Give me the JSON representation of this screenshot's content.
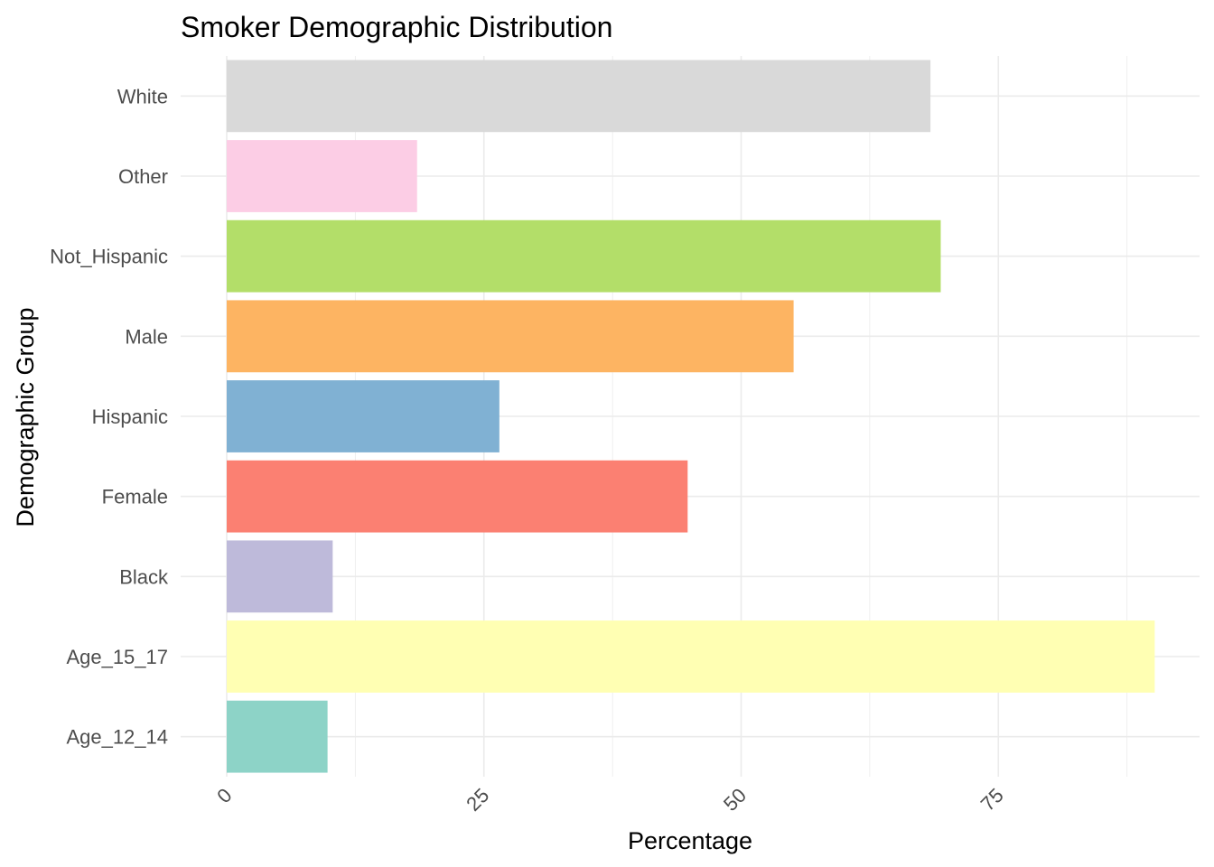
{
  "chart_data": {
    "type": "bar",
    "orientation": "horizontal",
    "title": "Smoker Demographic Distribution",
    "xlabel": "Percentage",
    "ylabel": "Demographic Group",
    "categories": [
      "Age_12_14",
      "Age_15_17",
      "Black",
      "Female",
      "Hispanic",
      "Male",
      "Not_Hispanic",
      "Other",
      "White"
    ],
    "values": [
      9.8,
      90.2,
      10.3,
      44.8,
      26.5,
      55.1,
      69.4,
      18.5,
      68.4
    ],
    "colors": [
      "#8DD3C7",
      "#FFFFB3",
      "#BEBADA",
      "#FB8072",
      "#80B1D3",
      "#FDB462",
      "#B3DE69",
      "#FCCDE5",
      "#D9D9D9"
    ],
    "x_ticks": [
      0,
      25,
      50,
      75
    ],
    "x_tick_labels": [
      "0",
      "25",
      "50",
      "75"
    ],
    "xlim": [
      0,
      94.7
    ],
    "grid": true,
    "legend": "none"
  }
}
